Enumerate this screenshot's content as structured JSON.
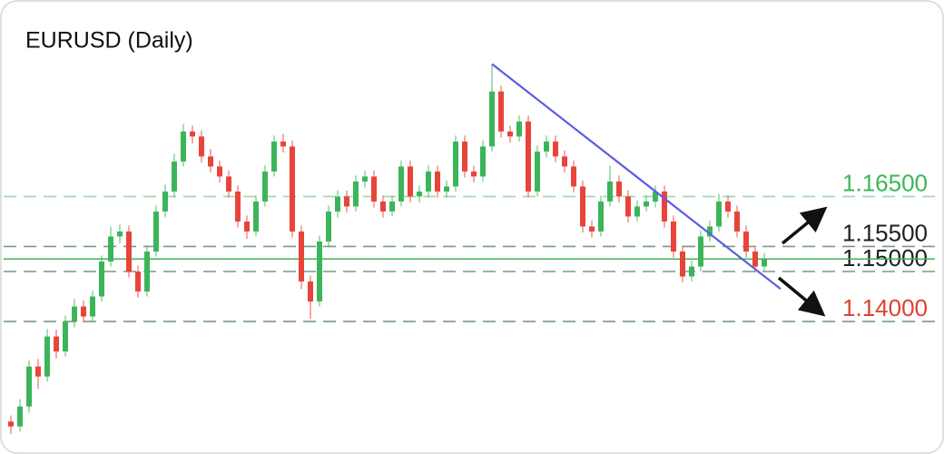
{
  "chart_data": {
    "type": "candlestick",
    "title": "EURUSD (Daily)",
    "up_color": "#3cb55a",
    "down_color": "#e8443a",
    "ylim": [
      1.1135,
      1.2043
    ],
    "open": [
      1.12,
      1.119,
      1.123,
      1.131,
      1.129,
      1.137,
      1.134,
      1.14,
      1.143,
      1.141,
      1.145,
      1.152,
      1.157,
      1.158,
      1.15,
      1.146,
      1.154,
      1.162,
      1.166,
      1.172,
      1.178,
      1.177,
      1.173,
      1.171,
      1.169,
      1.166,
      1.16,
      1.158,
      1.164,
      1.17,
      1.176,
      1.175,
      1.158,
      1.148,
      1.144,
      1.156,
      1.162,
      1.165,
      1.163,
      1.168,
      1.169,
      1.164,
      1.162,
      1.164,
      1.171,
      1.165,
      1.166,
      1.17,
      1.166,
      1.167,
      1.176,
      1.17,
      1.169,
      1.175,
      1.186,
      1.178,
      1.177,
      1.18,
      1.166,
      1.174,
      1.176,
      1.173,
      1.171,
      1.167,
      1.159,
      1.158,
      1.164,
      1.168,
      1.165,
      1.161,
      1.163,
      1.164,
      1.166,
      1.16,
      1.154,
      1.149,
      1.151,
      1.157,
      1.159,
      1.164,
      1.162,
      1.158,
      1.154,
      1.151
    ],
    "high": [
      1.1212,
      1.1245,
      1.1322,
      1.1325,
      1.1385,
      1.1384,
      1.1412,
      1.1445,
      1.1442,
      1.1462,
      1.1532,
      1.159,
      1.1594,
      1.1592,
      1.1512,
      1.1552,
      1.1632,
      1.1674,
      1.1735,
      1.1795,
      1.1792,
      1.1782,
      1.1745,
      1.1722,
      1.1702,
      1.1672,
      1.1612,
      1.1652,
      1.1712,
      1.1772,
      1.1775,
      1.1762,
      1.1592,
      1.1492,
      1.1572,
      1.1632,
      1.1662,
      1.1662,
      1.1692,
      1.1702,
      1.1702,
      1.1652,
      1.1652,
      1.1722,
      1.1722,
      1.1672,
      1.1712,
      1.1712,
      1.1682,
      1.1772,
      1.1772,
      1.1712,
      1.1762,
      1.1915,
      1.1872,
      1.1792,
      1.1812,
      1.1812,
      1.1752,
      1.1772,
      1.1772,
      1.1742,
      1.1722,
      1.1682,
      1.1602,
      1.1652,
      1.1712,
      1.1692,
      1.1662,
      1.1642,
      1.1652,
      1.1672,
      1.1672,
      1.1612,
      1.1552,
      1.1522,
      1.1582,
      1.1602,
      1.1655,
      1.1652,
      1.1632,
      1.1592,
      1.1552,
      1.1537
    ],
    "low": [
      1.1175,
      1.118,
      1.1218,
      1.1265,
      1.128,
      1.1326,
      1.133,
      1.1388,
      1.1398,
      1.14,
      1.144,
      1.151,
      1.1556,
      1.1488,
      1.1448,
      1.145,
      1.153,
      1.1608,
      1.1648,
      1.171,
      1.1756,
      1.1718,
      1.1698,
      1.1678,
      1.1648,
      1.1588,
      1.1565,
      1.157,
      1.163,
      1.169,
      1.1738,
      1.1568,
      1.1465,
      1.1405,
      1.143,
      1.1548,
      1.1608,
      1.1618,
      1.162,
      1.1668,
      1.1628,
      1.1608,
      1.161,
      1.163,
      1.1638,
      1.1638,
      1.1648,
      1.1648,
      1.1648,
      1.166,
      1.1688,
      1.1678,
      1.168,
      1.174,
      1.1768,
      1.1758,
      1.176,
      1.1648,
      1.165,
      1.1728,
      1.1718,
      1.1698,
      1.1658,
      1.1578,
      1.1568,
      1.157,
      1.163,
      1.1638,
      1.1598,
      1.16,
      1.162,
      1.1628,
      1.1588,
      1.1528,
      1.1478,
      1.148,
      1.15,
      1.156,
      1.158,
      1.1608,
      1.1568,
      1.1528,
      1.1498,
      1.15
    ],
    "close": [
      1.119,
      1.123,
      1.131,
      1.129,
      1.137,
      1.134,
      1.14,
      1.143,
      1.141,
      1.145,
      1.152,
      1.157,
      1.158,
      1.15,
      1.146,
      1.154,
      1.162,
      1.166,
      1.172,
      1.178,
      1.177,
      1.173,
      1.171,
      1.169,
      1.166,
      1.16,
      1.158,
      1.164,
      1.17,
      1.176,
      1.175,
      1.158,
      1.148,
      1.144,
      1.156,
      1.162,
      1.165,
      1.163,
      1.168,
      1.169,
      1.164,
      1.162,
      1.164,
      1.171,
      1.165,
      1.166,
      1.17,
      1.166,
      1.167,
      1.176,
      1.17,
      1.169,
      1.175,
      1.186,
      1.178,
      1.177,
      1.18,
      1.166,
      1.174,
      1.176,
      1.173,
      1.171,
      1.167,
      1.159,
      1.158,
      1.164,
      1.168,
      1.165,
      1.161,
      1.163,
      1.164,
      1.166,
      1.16,
      1.154,
      1.149,
      1.151,
      1.157,
      1.159,
      1.164,
      1.162,
      1.158,
      1.154,
      1.151,
      1.1525
    ],
    "price_line": 1.1525,
    "trendline": {
      "x": [
        53,
        84.8
      ],
      "y": [
        1.1915,
        1.1465
      ],
      "color": "#5b5fe0"
    },
    "levels": [
      {
        "value": 1.165,
        "label": "1.16500",
        "color": "#3cb55a"
      },
      {
        "value": 1.155,
        "label": "1.15500",
        "color": "#1f1f1f"
      },
      {
        "value": 1.15,
        "label": "1.15000",
        "color": "#1f1f1f"
      },
      {
        "value": 1.14,
        "label": "1.14000",
        "color": "#e0402f"
      }
    ]
  }
}
